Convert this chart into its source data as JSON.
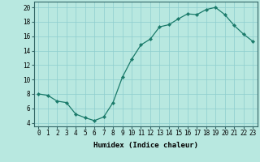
{
  "x": [
    0,
    1,
    2,
    3,
    4,
    5,
    6,
    7,
    8,
    9,
    10,
    11,
    12,
    13,
    14,
    15,
    16,
    17,
    18,
    19,
    20,
    21,
    22,
    23
  ],
  "y": [
    8.0,
    7.8,
    7.0,
    6.8,
    5.2,
    4.7,
    4.3,
    4.8,
    6.8,
    10.3,
    12.8,
    14.8,
    15.6,
    17.3,
    17.6,
    18.4,
    19.1,
    19.0,
    19.7,
    20.0,
    19.0,
    17.5,
    16.3,
    15.3
  ],
  "title": "",
  "xlabel": "Humidex (Indice chaleur)",
  "ylabel": "",
  "xlim": [
    -0.5,
    23.5
  ],
  "ylim": [
    3.5,
    20.8
  ],
  "xticks": [
    0,
    1,
    2,
    3,
    4,
    5,
    6,
    7,
    8,
    9,
    10,
    11,
    12,
    13,
    14,
    15,
    16,
    17,
    18,
    19,
    20,
    21,
    22,
    23
  ],
  "yticks": [
    4,
    6,
    8,
    10,
    12,
    14,
    16,
    18,
    20
  ],
  "line_color": "#1a7a6a",
  "marker_color": "#1a7a6a",
  "bg_color": "#b8e8e0",
  "grid_color": "#8ecece",
  "label_fontsize": 6.5,
  "tick_fontsize": 5.5,
  "spine_color": "#336666"
}
